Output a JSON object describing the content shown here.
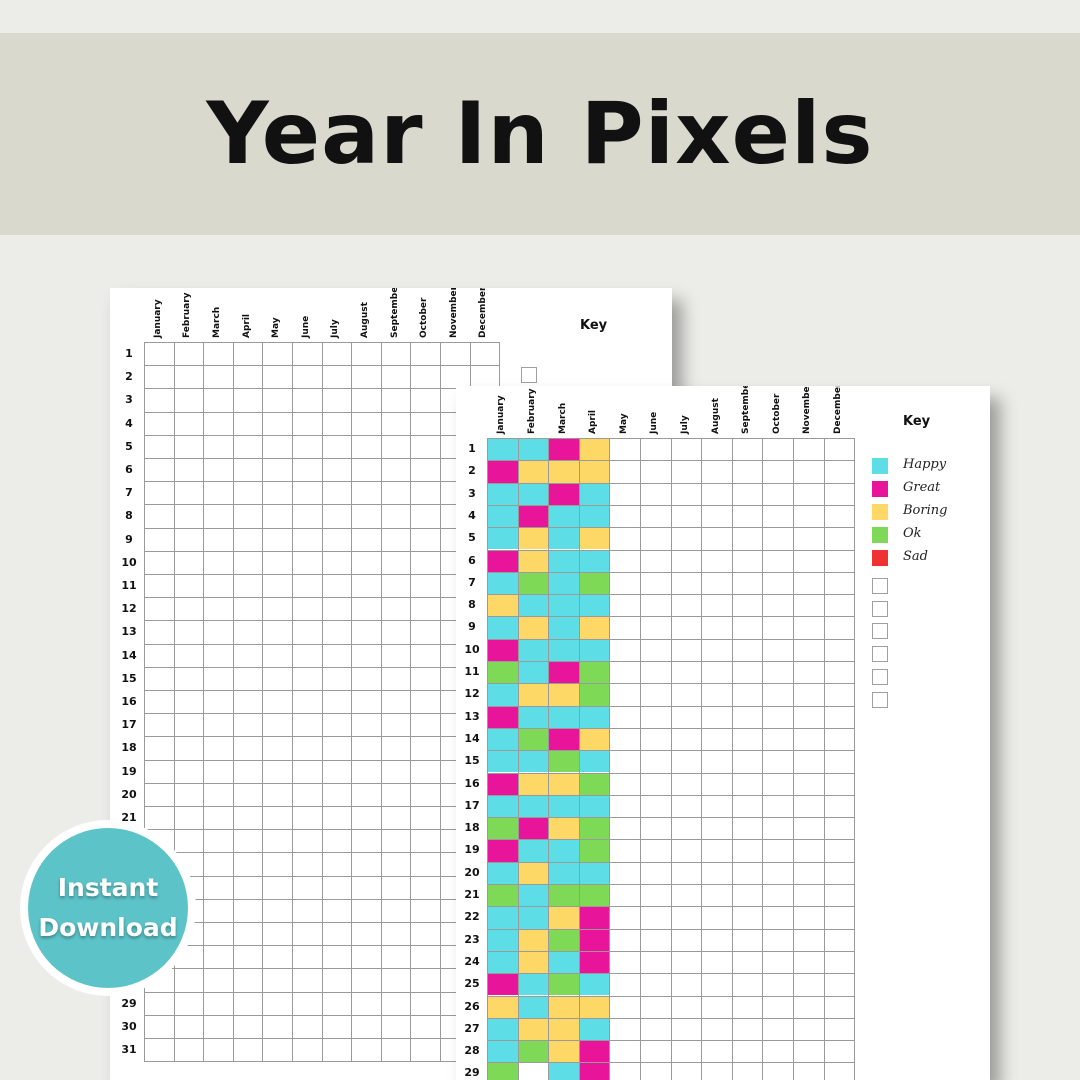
{
  "banner": {
    "title": "Year In Pixels"
  },
  "months": [
    "January",
    "February",
    "March",
    "April",
    "May",
    "June",
    "July",
    "August",
    "September",
    "October",
    "November",
    "December"
  ],
  "days": [
    "1",
    "2",
    "3",
    "4",
    "5",
    "6",
    "7",
    "8",
    "9",
    "10",
    "11",
    "12",
    "13",
    "14",
    "15",
    "16",
    "17",
    "18",
    "19",
    "20",
    "21",
    "22",
    "23",
    "24",
    "25",
    "26",
    "27",
    "28",
    "29",
    "30",
    "31"
  ],
  "back_sheet": {
    "key_title": "Key",
    "visible_day_labels": [
      "1",
      "2",
      "3",
      "4",
      "5",
      "6",
      "7",
      "8",
      "9",
      "10",
      "11",
      "12",
      "13",
      "14",
      "15",
      "16",
      "17",
      "18",
      "19",
      "20",
      "21",
      "29",
      "30",
      "31"
    ]
  },
  "front_sheet": {
    "key_title": "Key",
    "key": [
      {
        "label": "Happy",
        "color": "#5ddde6",
        "code": "H"
      },
      {
        "label": "Great",
        "color": "#e8149a",
        "code": "G"
      },
      {
        "label": "Boring",
        "color": "#fdd866",
        "code": "B"
      },
      {
        "label": "Ok",
        "color": "#7ed957",
        "code": "O"
      },
      {
        "label": "Sad",
        "color": "#ee3131",
        "code": "S"
      }
    ],
    "empty_key_slots": 6,
    "mood_grid": [
      [
        "H",
        "H",
        "G",
        "B"
      ],
      [
        "G",
        "B",
        "B",
        "B"
      ],
      [
        "H",
        "H",
        "G",
        "H"
      ],
      [
        "H",
        "G",
        "H",
        "H"
      ],
      [
        "H",
        "B",
        "H",
        "B"
      ],
      [
        "G",
        "B",
        "H",
        "H"
      ],
      [
        "H",
        "O",
        "H",
        "O"
      ],
      [
        "B",
        "H",
        "H",
        "H"
      ],
      [
        "H",
        "B",
        "H",
        "B"
      ],
      [
        "G",
        "H",
        "H",
        "H"
      ],
      [
        "O",
        "H",
        "G",
        "O"
      ],
      [
        "H",
        "B",
        "B",
        "O"
      ],
      [
        "G",
        "H",
        "H",
        "H"
      ],
      [
        "H",
        "O",
        "G",
        "B"
      ],
      [
        "H",
        "H",
        "O",
        "H"
      ],
      [
        "G",
        "B",
        "B",
        "O"
      ],
      [
        "H",
        "H",
        "H",
        "H"
      ],
      [
        "O",
        "G",
        "B",
        "O"
      ],
      [
        "G",
        "H",
        "H",
        "O"
      ],
      [
        "H",
        "B",
        "H",
        "H"
      ],
      [
        "O",
        "H",
        "O",
        "O"
      ],
      [
        "H",
        "H",
        "B",
        "G"
      ],
      [
        "H",
        "B",
        "O",
        "G"
      ],
      [
        "H",
        "B",
        "H",
        "G"
      ],
      [
        "G",
        "H",
        "O",
        "H"
      ],
      [
        "B",
        "H",
        "B",
        "B"
      ],
      [
        "H",
        "B",
        "B",
        "H"
      ],
      [
        "H",
        "O",
        "B",
        "G"
      ],
      [
        "O",
        "",
        "H",
        "G"
      ]
    ]
  },
  "badge": {
    "line1": "Instant",
    "line2": "Download"
  }
}
